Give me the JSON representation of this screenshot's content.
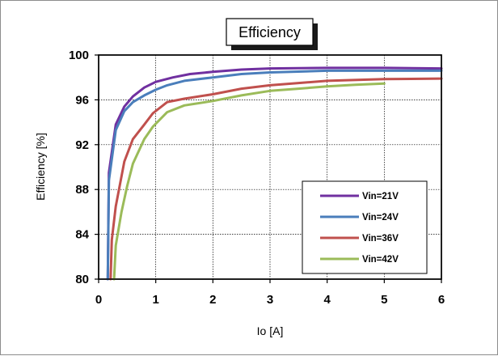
{
  "chart_data": {
    "type": "line",
    "title": "Efficiency",
    "xlabel": "Io [A]",
    "ylabel": "Efficiency  [%]",
    "xlim": [
      0,
      6
    ],
    "ylim": [
      80,
      100
    ],
    "x_ticks": [
      0,
      1,
      2,
      3,
      4,
      5,
      6
    ],
    "y_ticks": [
      80,
      84,
      88,
      92,
      96,
      100
    ],
    "grid": true,
    "legend_position": "bottom-right",
    "series": [
      {
        "name": "Vin=21V",
        "color": "#7030a0",
        "points": [
          [
            0.16,
            80
          ],
          [
            0.18,
            89.5
          ],
          [
            0.3,
            93.8
          ],
          [
            0.45,
            95.4
          ],
          [
            0.6,
            96.3
          ],
          [
            0.8,
            97.1
          ],
          [
            1.0,
            97.6
          ],
          [
            1.3,
            98.0
          ],
          [
            1.6,
            98.3
          ],
          [
            2.0,
            98.5
          ],
          [
            2.5,
            98.7
          ],
          [
            3.0,
            98.8
          ],
          [
            4.0,
            98.85
          ],
          [
            5.0,
            98.85
          ],
          [
            6.0,
            98.8
          ]
        ]
      },
      {
        "name": "Vin=24V",
        "color": "#4a7ebb",
        "points": [
          [
            0.16,
            80
          ],
          [
            0.18,
            88.8
          ],
          [
            0.3,
            93.3
          ],
          [
            0.45,
            95.0
          ],
          [
            0.6,
            95.8
          ],
          [
            0.8,
            96.4
          ],
          [
            1.0,
            96.9
          ],
          [
            1.2,
            97.3
          ],
          [
            1.5,
            97.7
          ],
          [
            2.0,
            98.0
          ],
          [
            2.5,
            98.3
          ],
          [
            3.0,
            98.45
          ],
          [
            4.0,
            98.6
          ],
          [
            5.0,
            98.6
          ],
          [
            6.0,
            98.6
          ]
        ]
      },
      {
        "name": "Vin=36V",
        "color": "#c0504d",
        "points": [
          [
            0.21,
            80
          ],
          [
            0.23,
            83.5
          ],
          [
            0.3,
            86.5
          ],
          [
            0.45,
            90.5
          ],
          [
            0.6,
            92.5
          ],
          [
            0.8,
            93.8
          ],
          [
            0.95,
            94.8
          ],
          [
            1.2,
            95.8
          ],
          [
            1.5,
            96.1
          ],
          [
            2.0,
            96.5
          ],
          [
            2.5,
            97.0
          ],
          [
            3.0,
            97.3
          ],
          [
            3.5,
            97.5
          ],
          [
            4.0,
            97.7
          ],
          [
            5.0,
            97.85
          ],
          [
            6.0,
            97.9
          ]
        ]
      },
      {
        "name": "Vin=42V",
        "color": "#9bbb59",
        "points": [
          [
            0.27,
            80
          ],
          [
            0.3,
            83.0
          ],
          [
            0.4,
            86.0
          ],
          [
            0.5,
            88.3
          ],
          [
            0.6,
            90.3
          ],
          [
            0.8,
            92.5
          ],
          [
            0.95,
            93.6
          ],
          [
            1.2,
            94.9
          ],
          [
            1.5,
            95.5
          ],
          [
            2.0,
            95.9
          ],
          [
            2.5,
            96.4
          ],
          [
            3.0,
            96.8
          ],
          [
            3.5,
            97.0
          ],
          [
            4.0,
            97.2
          ],
          [
            4.5,
            97.35
          ],
          [
            5.0,
            97.45
          ]
        ]
      }
    ]
  }
}
